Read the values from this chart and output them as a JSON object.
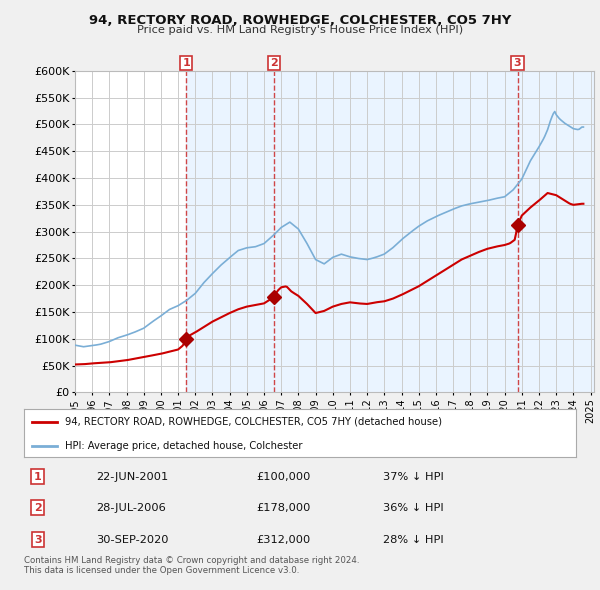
{
  "title": "94, RECTORY ROAD, ROWHEDGE, COLCHESTER, CO5 7HY",
  "subtitle": "Price paid vs. HM Land Registry's House Price Index (HPI)",
  "ylim": [
    0,
    600000
  ],
  "yticks": [
    0,
    50000,
    100000,
    150000,
    200000,
    250000,
    300000,
    350000,
    400000,
    450000,
    500000,
    550000,
    600000
  ],
  "ytick_labels": [
    "£0",
    "£50K",
    "£100K",
    "£150K",
    "£200K",
    "£250K",
    "£300K",
    "£350K",
    "£400K",
    "£450K",
    "£500K",
    "£550K",
    "£600K"
  ],
  "bg_color": "#f0f0f0",
  "plot_bg_color": "#ffffff",
  "grid_color": "#cccccc",
  "hpi_color": "#7aaed6",
  "price_color": "#cc0000",
  "marker_color": "#aa0000",
  "vline_color": "#cc3333",
  "shade_color": "#ddeeff",
  "purchases": [
    {
      "date_num": 2001.47,
      "price": 100000,
      "label": "1"
    },
    {
      "date_num": 2006.57,
      "price": 178000,
      "label": "2"
    },
    {
      "date_num": 2020.75,
      "price": 312000,
      "label": "3"
    }
  ],
  "legend_price_label": "94, RECTORY ROAD, ROWHEDGE, COLCHESTER, CO5 7HY (detached house)",
  "legend_hpi_label": "HPI: Average price, detached house, Colchester",
  "table_rows": [
    {
      "num": "1",
      "date": "22-JUN-2001",
      "price": "£100,000",
      "pct": "37% ↓ HPI"
    },
    {
      "num": "2",
      "date": "28-JUL-2006",
      "price": "£178,000",
      "pct": "36% ↓ HPI"
    },
    {
      "num": "3",
      "date": "30-SEP-2020",
      "price": "£312,000",
      "pct": "28% ↓ HPI"
    }
  ],
  "footer": "Contains HM Land Registry data © Crown copyright and database right 2024.\nThis data is licensed under the Open Government Licence v3.0.",
  "xlim_left": 1995.0,
  "xlim_right": 2025.2
}
